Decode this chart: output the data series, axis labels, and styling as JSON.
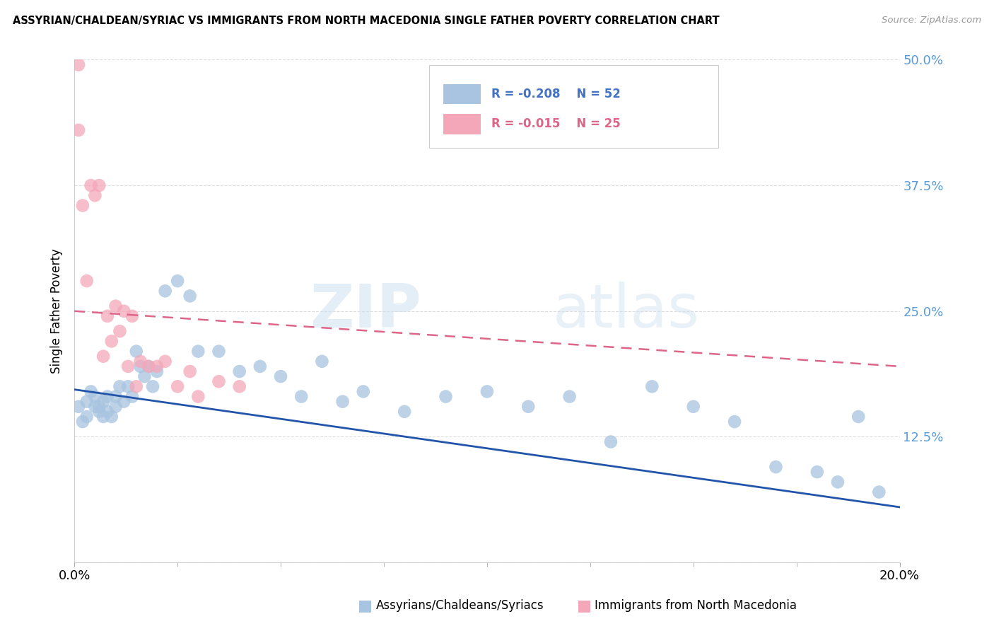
{
  "title": "ASSYRIAN/CHALDEAN/SYRIAC VS IMMIGRANTS FROM NORTH MACEDONIA SINGLE FATHER POVERTY CORRELATION CHART",
  "source": "Source: ZipAtlas.com",
  "ylabel": "Single Father Poverty",
  "legend_label_blue": "Assyrians/Chaldeans/Syriacs",
  "legend_label_pink": "Immigrants from North Macedonia",
  "legend_r_blue": "R = -0.208",
  "legend_n_blue": "N = 52",
  "legend_r_pink": "R = -0.015",
  "legend_n_pink": "N = 25",
  "xlim": [
    0.0,
    0.2
  ],
  "ylim": [
    0.0,
    0.5
  ],
  "yticks": [
    0.0,
    0.125,
    0.25,
    0.375,
    0.5
  ],
  "ytick_labels": [
    "",
    "12.5%",
    "25.0%",
    "37.5%",
    "50.0%"
  ],
  "color_blue": "#a8c4e0",
  "color_pink": "#f4a7b9",
  "line_color_blue": "#2255aa",
  "line_color_pink": "#dd6688",
  "watermark_zip": "ZIP",
  "watermark_atlas": "atlas",
  "blue_x": [
    0.001,
    0.002,
    0.003,
    0.003,
    0.004,
    0.005,
    0.005,
    0.006,
    0.006,
    0.007,
    0.007,
    0.008,
    0.008,
    0.009,
    0.01,
    0.01,
    0.011,
    0.012,
    0.013,
    0.014,
    0.015,
    0.016,
    0.017,
    0.018,
    0.019,
    0.02,
    0.022,
    0.025,
    0.028,
    0.03,
    0.035,
    0.04,
    0.045,
    0.05,
    0.055,
    0.06,
    0.065,
    0.07,
    0.08,
    0.09,
    0.1,
    0.11,
    0.12,
    0.13,
    0.14,
    0.15,
    0.16,
    0.17,
    0.18,
    0.185,
    0.19,
    0.195
  ],
  "blue_y": [
    0.155,
    0.14,
    0.145,
    0.16,
    0.17,
    0.155,
    0.165,
    0.15,
    0.155,
    0.145,
    0.16,
    0.15,
    0.165,
    0.145,
    0.155,
    0.165,
    0.175,
    0.16,
    0.175,
    0.165,
    0.21,
    0.195,
    0.185,
    0.195,
    0.175,
    0.19,
    0.27,
    0.28,
    0.265,
    0.21,
    0.21,
    0.19,
    0.195,
    0.185,
    0.165,
    0.2,
    0.16,
    0.17,
    0.15,
    0.165,
    0.17,
    0.155,
    0.165,
    0.12,
    0.175,
    0.155,
    0.14,
    0.095,
    0.09,
    0.08,
    0.145,
    0.07
  ],
  "pink_x": [
    0.001,
    0.001,
    0.002,
    0.003,
    0.004,
    0.005,
    0.006,
    0.007,
    0.008,
    0.009,
    0.01,
    0.011,
    0.012,
    0.013,
    0.014,
    0.015,
    0.016,
    0.018,
    0.02,
    0.022,
    0.025,
    0.028,
    0.03,
    0.035,
    0.04
  ],
  "pink_y": [
    0.495,
    0.43,
    0.355,
    0.28,
    0.375,
    0.365,
    0.375,
    0.205,
    0.245,
    0.22,
    0.255,
    0.23,
    0.25,
    0.195,
    0.245,
    0.175,
    0.2,
    0.195,
    0.195,
    0.2,
    0.175,
    0.19,
    0.165,
    0.18,
    0.175
  ],
  "blue_trend_x": [
    0.0,
    0.2
  ],
  "blue_trend_y": [
    0.172,
    0.055
  ],
  "pink_trend_x": [
    0.0,
    0.2
  ],
  "pink_trend_y": [
    0.25,
    0.195
  ]
}
